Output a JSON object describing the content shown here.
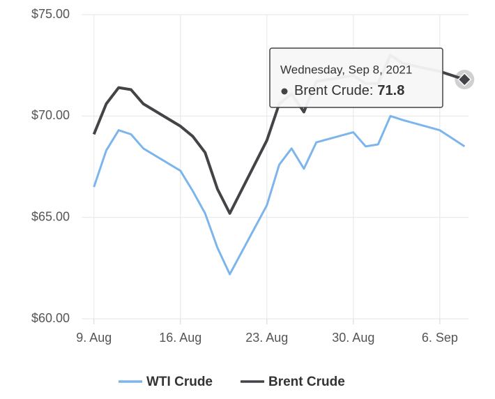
{
  "chart_data": {
    "type": "line",
    "x": [
      "2021-08-09",
      "2021-08-10",
      "2021-08-11",
      "2021-08-12",
      "2021-08-13",
      "2021-08-16",
      "2021-08-17",
      "2021-08-18",
      "2021-08-19",
      "2021-08-20",
      "2021-08-23",
      "2021-08-24",
      "2021-08-25",
      "2021-08-26",
      "2021-08-27",
      "2021-08-30",
      "2021-08-31",
      "2021-09-01",
      "2021-09-02",
      "2021-09-03",
      "2021-09-06",
      "2021-09-07",
      "2021-09-08"
    ],
    "series": [
      {
        "name": "WTI Crude",
        "color": "#7cb5ec",
        "values": [
          66.5,
          68.3,
          69.3,
          69.1,
          68.4,
          67.3,
          66.3,
          65.2,
          63.5,
          62.2,
          65.6,
          67.6,
          68.4,
          67.4,
          68.7,
          69.2,
          68.5,
          68.6,
          70.0,
          69.8,
          69.3,
          68.9,
          68.5
        ]
      },
      {
        "name": "Brent Crude",
        "color": "#434348",
        "values": [
          69.1,
          70.6,
          71.4,
          71.3,
          70.6,
          69.5,
          69.0,
          68.2,
          66.4,
          65.2,
          68.8,
          70.6,
          71.1,
          70.2,
          71.7,
          72.0,
          71.6,
          71.6,
          73.0,
          72.6,
          72.2,
          72.0,
          71.8
        ]
      }
    ],
    "xlim": [
      "2021-08-08",
      "2021-09-09"
    ],
    "xticks": [
      {
        "value": "2021-08-09",
        "label": "9. Aug"
      },
      {
        "value": "2021-08-16",
        "label": "16. Aug"
      },
      {
        "value": "2021-08-23",
        "label": "23. Aug"
      },
      {
        "value": "2021-08-30",
        "label": "30. Aug"
      },
      {
        "value": "2021-09-06",
        "label": "6. Sep"
      }
    ],
    "ylim": [
      60,
      75
    ],
    "yticks": [
      {
        "value": 60,
        "label": "$60.00"
      },
      {
        "value": 65,
        "label": "$65.00"
      },
      {
        "value": 70,
        "label": "$70.00"
      },
      {
        "value": 75,
        "label": "$75.00"
      }
    ],
    "grid": true,
    "legend": "bottom",
    "tooltip": {
      "header": "Wednesday, Sep 8, 2021",
      "label": "Brent Crude:"
    }
  }
}
